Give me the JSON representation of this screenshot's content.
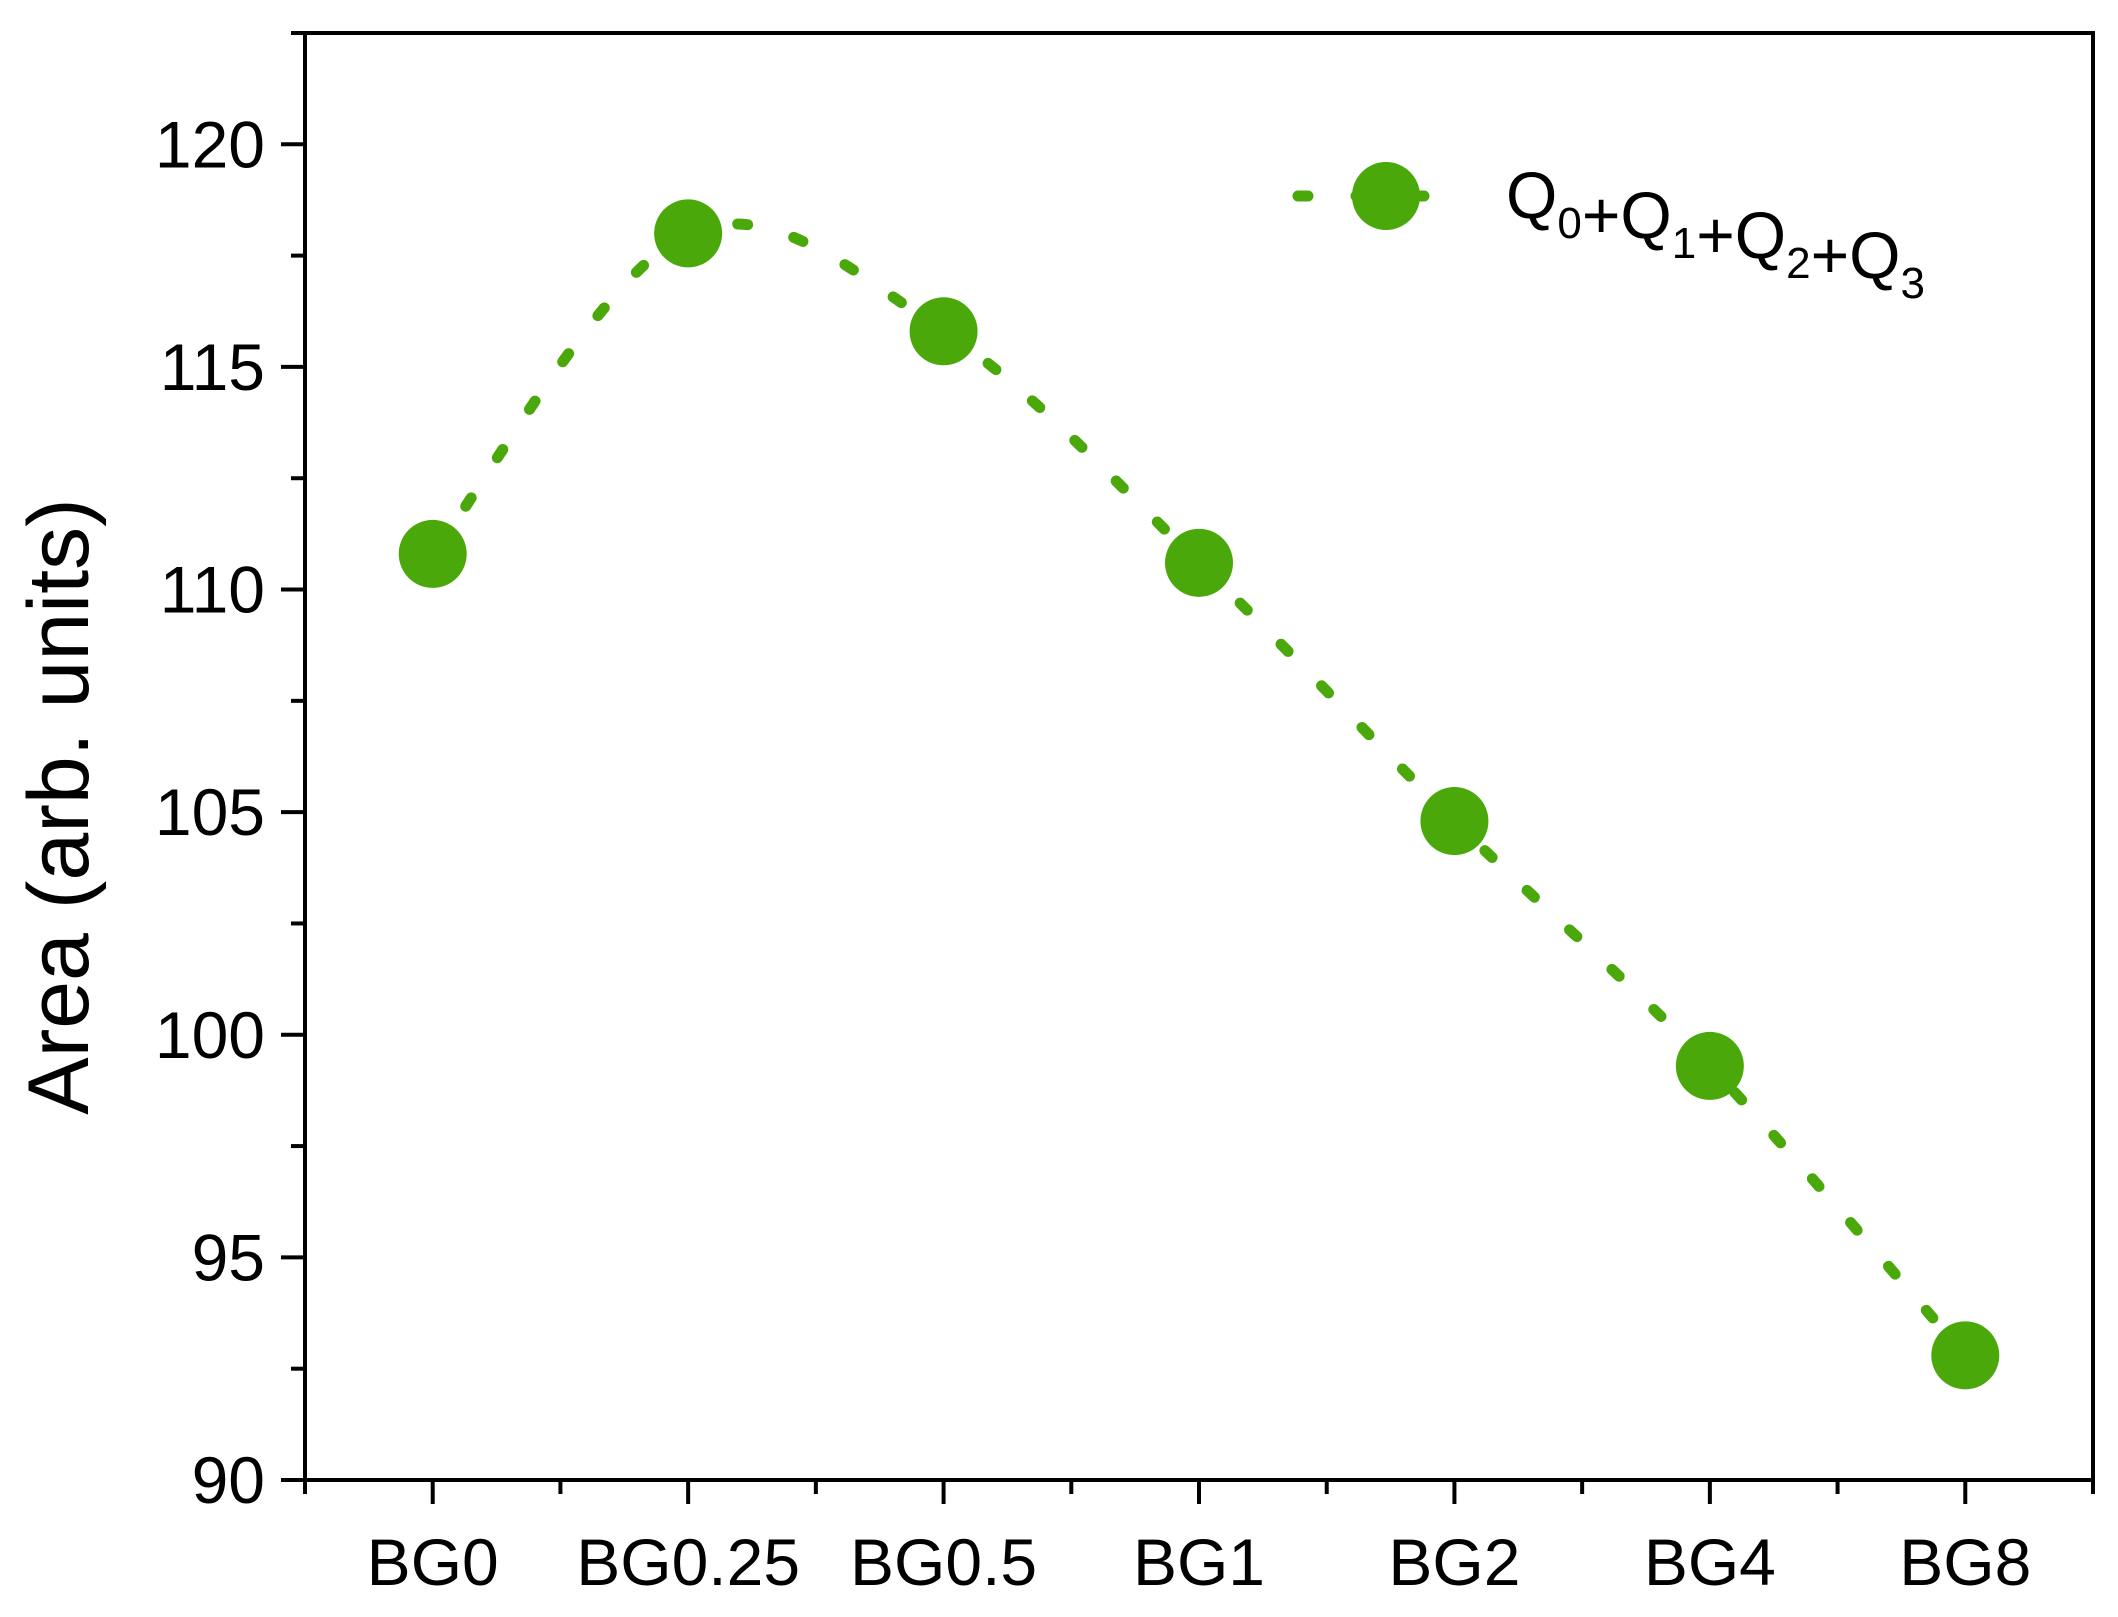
{
  "chart_data": {
    "type": "line",
    "categories": [
      "BG0",
      "BG0.25",
      "BG0.5",
      "BG1",
      "BG2",
      "BG4",
      "BG8"
    ],
    "series": [
      {
        "name": "Q0+Q1+Q2+Q3",
        "values": [
          110.8,
          118.0,
          115.8,
          110.6,
          104.8,
          99.3,
          92.8
        ],
        "color": "#4aa80a",
        "line_style": "dotted",
        "marker": "circle"
      }
    ],
    "legend": {
      "position": "top-right",
      "parts": [
        {
          "text": "Q",
          "sub": "0"
        },
        {
          "text": "+Q",
          "sub": "1"
        },
        {
          "text": "+Q",
          "sub": "2"
        },
        {
          "text": "+Q",
          "sub": "3"
        }
      ]
    },
    "xlabel": "",
    "ylabel": "Area (arb. units)",
    "ylim": [
      90,
      122.5
    ],
    "yticks": [
      90,
      95,
      100,
      105,
      110,
      115,
      120
    ],
    "ytick_labels": [
      "90",
      "95",
      "100",
      "105",
      "110",
      "115",
      "120"
    ],
    "grid": false
  }
}
